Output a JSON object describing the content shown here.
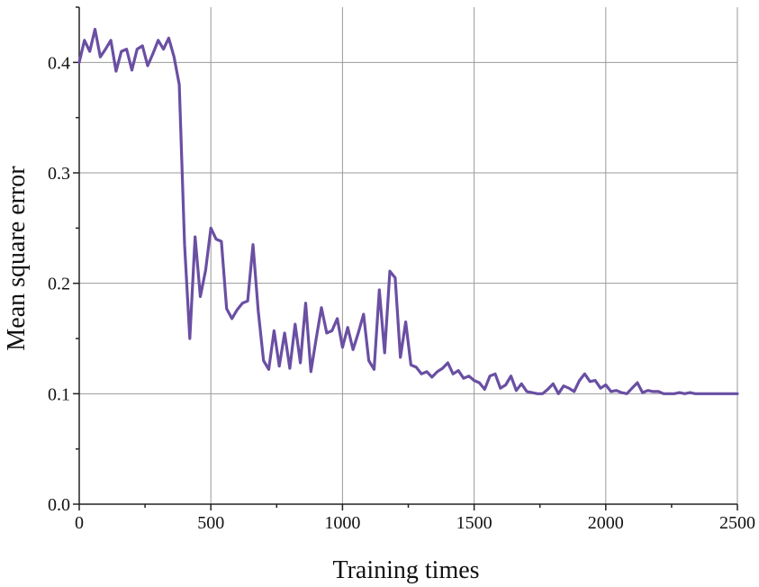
{
  "chart_data": {
    "type": "line",
    "title": "",
    "xlabel": "Training times",
    "ylabel": "Mean square error",
    "xlim": [
      0,
      2500
    ],
    "ylim": [
      0,
      0.45
    ],
    "xticks": [
      0,
      500,
      1000,
      1500,
      2000,
      2500
    ],
    "yticks": [
      0.0,
      0.1,
      0.2,
      0.3,
      0.4
    ],
    "xtick_labels": [
      "0",
      "500",
      "1000",
      "1500",
      "2000",
      "2500"
    ],
    "ytick_labels": [
      "0.0",
      "0.1",
      "0.2",
      "0.3",
      "0.4"
    ],
    "grid": true,
    "line_color": "#6a4fa3",
    "series": [
      {
        "x": [
          0,
          20,
          40,
          60,
          80,
          100,
          120,
          140,
          160,
          180,
          200,
          220,
          240,
          260,
          280,
          300,
          320,
          340,
          360,
          380,
          400,
          420,
          440,
          460,
          480,
          500,
          520,
          540,
          560,
          580,
          600,
          620,
          640,
          660,
          680,
          700,
          720,
          740,
          760,
          780,
          800,
          820,
          840,
          860,
          880,
          900,
          920,
          940,
          960,
          980,
          1000,
          1020,
          1040,
          1060,
          1080,
          1100,
          1120,
          1140,
          1160,
          1180,
          1200,
          1220,
          1240,
          1260,
          1280,
          1300,
          1320,
          1340,
          1360,
          1380,
          1400,
          1420,
          1440,
          1460,
          1480,
          1500,
          1520,
          1540,
          1560,
          1580,
          1600,
          1620,
          1640,
          1660,
          1680,
          1700,
          1720,
          1740,
          1760,
          1780,
          1800,
          1820,
          1840,
          1860,
          1880,
          1900,
          1920,
          1940,
          1960,
          1980,
          2000,
          2020,
          2040,
          2060,
          2080,
          2100,
          2120,
          2140,
          2160,
          2180,
          2200,
          2220,
          2240,
          2260,
          2280,
          2300,
          2320,
          2340,
          2360,
          2380,
          2400,
          2420,
          2440,
          2460,
          2480,
          2500
        ],
        "y": [
          0.4,
          0.42,
          0.41,
          0.43,
          0.405,
          0.412,
          0.42,
          0.392,
          0.41,
          0.412,
          0.393,
          0.412,
          0.415,
          0.397,
          0.408,
          0.42,
          0.412,
          0.422,
          0.405,
          0.38,
          0.235,
          0.15,
          0.242,
          0.188,
          0.212,
          0.25,
          0.24,
          0.238,
          0.177,
          0.168,
          0.176,
          0.182,
          0.184,
          0.235,
          0.175,
          0.13,
          0.122,
          0.157,
          0.125,
          0.155,
          0.123,
          0.163,
          0.128,
          0.182,
          0.12,
          0.15,
          0.178,
          0.155,
          0.157,
          0.168,
          0.142,
          0.16,
          0.14,
          0.155,
          0.172,
          0.13,
          0.122,
          0.194,
          0.137,
          0.211,
          0.205,
          0.133,
          0.165,
          0.126,
          0.124,
          0.118,
          0.12,
          0.115,
          0.12,
          0.123,
          0.128,
          0.118,
          0.121,
          0.114,
          0.116,
          0.112,
          0.11,
          0.104,
          0.116,
          0.118,
          0.105,
          0.108,
          0.116,
          0.103,
          0.109,
          0.102,
          0.101,
          0.1,
          0.1,
          0.104,
          0.109,
          0.1,
          0.107,
          0.105,
          0.102,
          0.112,
          0.118,
          0.111,
          0.112,
          0.105,
          0.108,
          0.102,
          0.103,
          0.101,
          0.1,
          0.105,
          0.11,
          0.101,
          0.103,
          0.102,
          0.102,
          0.1,
          0.1,
          0.1,
          0.101,
          0.1,
          0.101,
          0.1,
          0.1,
          0.1,
          0.1,
          0.1,
          0.1,
          0.1,
          0.1,
          0.1
        ]
      }
    ]
  }
}
